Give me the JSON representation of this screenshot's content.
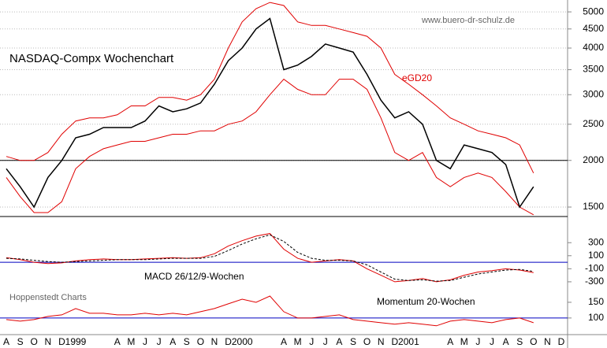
{
  "chart_data": [
    {
      "type": "line",
      "title": "NASDAQ-Compx Wochenchart",
      "source": "www.buero-dr-schulz.de",
      "log_scale": true,
      "ylim": [
        1415,
        5380
      ],
      "yticks": [
        1500,
        2000,
        2500,
        3000,
        3500,
        4000,
        4500,
        5000
      ],
      "grid": true,
      "ref_line": 2000,
      "series": [
        {
          "color": "#000000",
          "values": [
            1900,
            1700,
            1500,
            1800,
            2000,
            2300,
            2350,
            2450,
            2450,
            2450,
            2550,
            2800,
            2700,
            2750,
            2850,
            3200,
            3700,
            4000,
            4500,
            4800,
            3500,
            3600,
            3800,
            4100,
            4000,
            3900,
            3400,
            2900,
            2600,
            2700,
            2500,
            2000,
            1900,
            2200,
            2150,
            2100,
            1950,
            1500,
            1700,
            null,
            null
          ]
        }
      ],
      "bands": {
        "name": "eGD20",
        "color": "#e00000",
        "upper": [
          2050,
          2000,
          2000,
          2100,
          2350,
          2550,
          2600,
          2600,
          2650,
          2800,
          2800,
          2950,
          2950,
          2900,
          3000,
          3300,
          4000,
          4700,
          5100,
          5300,
          5200,
          4700,
          4600,
          4600,
          4500,
          4400,
          4300,
          4000,
          3400,
          3200,
          3000,
          2800,
          2600,
          2500,
          2400,
          2350,
          2300,
          2200,
          1850,
          null,
          null
        ],
        "lower": [
          1800,
          1600,
          1450,
          1450,
          1550,
          1900,
          2050,
          2150,
          2200,
          2250,
          2250,
          2300,
          2350,
          2350,
          2400,
          2400,
          2500,
          2550,
          2700,
          3000,
          3300,
          3100,
          3000,
          3000,
          3300,
          3300,
          3100,
          2600,
          2100,
          2000,
          2100,
          1800,
          1700,
          1800,
          1850,
          1800,
          1650,
          1500,
          1430,
          null,
          null
        ]
      }
    },
    {
      "type": "line",
      "title": "MACD 26/12/9-Wochen",
      "ylim": [
        -470,
        520
      ],
      "yticks": [
        300,
        100,
        -100,
        -300
      ],
      "ref_line": 0,
      "series": [
        {
          "color": "#e00000",
          "values": [
            70,
            40,
            0,
            -20,
            -10,
            20,
            40,
            50,
            40,
            40,
            50,
            60,
            70,
            60,
            70,
            130,
            250,
            330,
            400,
            440,
            200,
            60,
            0,
            20,
            40,
            20,
            -100,
            -200,
            -300,
            -280,
            -250,
            -300,
            -270,
            -200,
            -150,
            -130,
            -100,
            -120,
            -160,
            null,
            null
          ]
        },
        {
          "color": "#000000",
          "dashed": true,
          "values": [
            60,
            50,
            30,
            10,
            0,
            10,
            20,
            30,
            40,
            40,
            40,
            50,
            60,
            60,
            60,
            90,
            180,
            280,
            360,
            420,
            320,
            150,
            60,
            30,
            30,
            20,
            -40,
            -150,
            -260,
            -280,
            -270,
            -290,
            -280,
            -230,
            -180,
            -150,
            -120,
            -110,
            -140,
            null,
            null
          ]
        }
      ]
    },
    {
      "type": "line",
      "title": "Momentum 20-Wochen",
      "source": "Hoppenstedt Charts",
      "ylim": [
        47,
        180
      ],
      "yticks": [
        150,
        100
      ],
      "ref_line": 100,
      "categories": [
        "A",
        "S",
        "O",
        "N",
        "D",
        "1999",
        null,
        null,
        "A",
        "M",
        "J",
        "J",
        "A",
        "S",
        "O",
        "N",
        "D",
        "2000",
        null,
        null,
        "A",
        "M",
        "J",
        "J",
        "A",
        "S",
        "O",
        "N",
        "D",
        "2001",
        null,
        null,
        "A",
        "M",
        "J",
        "J",
        "A",
        "S",
        "O",
        "N",
        "D"
      ],
      "series": [
        {
          "color": "#e00000",
          "values": [
            95,
            90,
            95,
            105,
            110,
            130,
            115,
            115,
            110,
            110,
            115,
            110,
            115,
            110,
            120,
            130,
            145,
            160,
            150,
            170,
            120,
            100,
            100,
            105,
            110,
            95,
            90,
            85,
            80,
            85,
            80,
            75,
            90,
            95,
            90,
            85,
            95,
            100,
            85,
            null,
            null
          ]
        }
      ]
    }
  ]
}
